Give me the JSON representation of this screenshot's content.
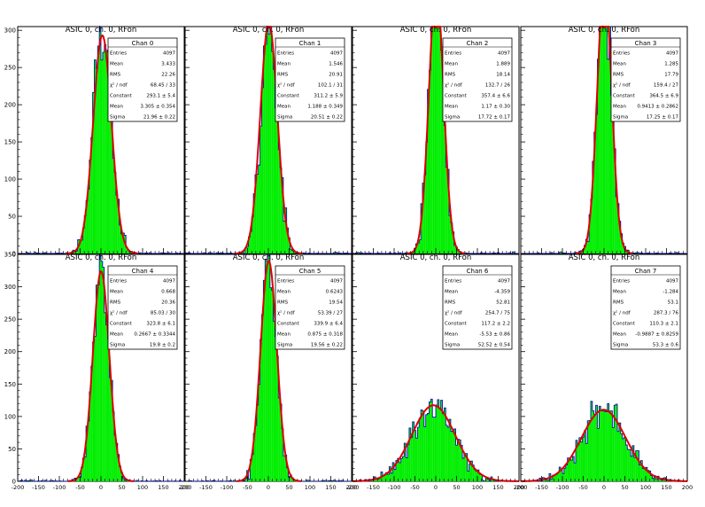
{
  "colors": {
    "fill": "#00ee00",
    "outline": "#0000aa",
    "fit": "#dd0000",
    "axis": "#000000",
    "background": "#ffffff"
  },
  "chart_data": [
    {
      "type": "bar",
      "title": "ASIC 0, ch. 0, RFon",
      "xlim": [
        -200,
        200
      ],
      "ylim": [
        0,
        305
      ],
      "x_ticks": [
        "-200",
        "-150",
        "-100",
        "-50",
        "0",
        "50",
        "100",
        "150",
        "200"
      ],
      "y_ticks": [
        "0",
        "50",
        "100",
        "150",
        "200",
        "250",
        "300"
      ],
      "stats": {
        "name": "Chan 0",
        "rows": [
          [
            "Entries",
            "4097"
          ],
          [
            "Mean",
            "3.433"
          ],
          [
            "RMS",
            "22.26"
          ],
          [
            "χ² / ndf",
            "68.45 / 33"
          ],
          [
            "Constant",
            "293.1 ± 5.4"
          ],
          [
            "Mean",
            "3.305 ± 0.354"
          ],
          [
            "Sigma",
            "21.96 ± 0.22"
          ]
        ]
      },
      "fit": {
        "constant": 293.1,
        "mean": 3.305,
        "sigma": 21.96
      }
    },
    {
      "type": "bar",
      "title": "ASIC 0, ch. 0, RFon",
      "xlim": [
        -200,
        200
      ],
      "ylim": [
        0,
        305
      ],
      "x_ticks": [
        "-200",
        "-150",
        "-100",
        "-50",
        "0",
        "50",
        "100",
        "150",
        "200"
      ],
      "y_ticks": [
        "0",
        "50",
        "100",
        "150",
        "200",
        "250",
        "300"
      ],
      "stats": {
        "name": "Chan 1",
        "rows": [
          [
            "Entries",
            "4097"
          ],
          [
            "Mean",
            "1.546"
          ],
          [
            "RMS",
            "20.91"
          ],
          [
            "χ² / ndf",
            "102.1 / 31"
          ],
          [
            "Constant",
            "311.2 ± 5.9"
          ],
          [
            "Mean",
            "1.188 ± 0.349"
          ],
          [
            "Sigma",
            "20.51 ± 0.22"
          ]
        ]
      },
      "fit": {
        "constant": 311.2,
        "mean": 1.188,
        "sigma": 20.51
      }
    },
    {
      "type": "bar",
      "title": "ASIC 0, ch. 0, RFon",
      "xlim": [
        -200,
        200
      ],
      "ylim": [
        0,
        305
      ],
      "x_ticks": [
        "-200",
        "-150",
        "-100",
        "-50",
        "0",
        "50",
        "100",
        "150",
        "200"
      ],
      "y_ticks": [
        "0",
        "50",
        "100",
        "150",
        "200",
        "250",
        "300"
      ],
      "stats": {
        "name": "Chan 2",
        "rows": [
          [
            "Entries",
            "4097"
          ],
          [
            "Mean",
            "1.889"
          ],
          [
            "RMS",
            "18.14"
          ],
          [
            "χ² / ndf",
            "132.7 / 26"
          ],
          [
            "Constant",
            "357.4 ± 6.6"
          ],
          [
            "Mean",
            "1.17 ± 0.30"
          ],
          [
            "Sigma",
            "17.72 ± 0.17"
          ]
        ]
      },
      "fit": {
        "constant": 357.4,
        "mean": 1.17,
        "sigma": 17.72
      }
    },
    {
      "type": "bar",
      "title": "ASIC 0, ch. 0, RFon",
      "xlim": [
        -200,
        200
      ],
      "ylim": [
        0,
        305
      ],
      "x_ticks": [
        "-200",
        "-150",
        "-100",
        "-50",
        "0",
        "50",
        "100",
        "150",
        "200"
      ],
      "y_ticks": [
        "0",
        "50",
        "100",
        "150",
        "200",
        "250",
        "300"
      ],
      "stats": {
        "name": "Chan 3",
        "rows": [
          [
            "Entries",
            "4097"
          ],
          [
            "Mean",
            "1.285"
          ],
          [
            "RMS",
            "17.79"
          ],
          [
            "χ² / ndf",
            "159.4 / 27"
          ],
          [
            "Constant",
            "364.5 ± 6.9"
          ],
          [
            "Mean",
            "0.9413 ± 0.2862"
          ],
          [
            "Sigma",
            "17.25 ± 0.17"
          ]
        ]
      },
      "fit": {
        "constant": 364.5,
        "mean": 0.9413,
        "sigma": 17.25
      }
    },
    {
      "type": "bar",
      "title": "ASIC 0, ch. 0, RFon",
      "xlim": [
        -200,
        200
      ],
      "ylim": [
        0,
        350
      ],
      "x_ticks": [
        "-200",
        "-150",
        "-100",
        "-50",
        "0",
        "50",
        "100",
        "150",
        "200"
      ],
      "y_ticks": [
        "0",
        "50",
        "100",
        "150",
        "200",
        "250",
        "300",
        "350"
      ],
      "stats": {
        "name": "Chan 4",
        "rows": [
          [
            "Entries",
            "4097"
          ],
          [
            "Mean",
            "0.668"
          ],
          [
            "RMS",
            "20.36"
          ],
          [
            "χ² / ndf",
            "85.03 / 30"
          ],
          [
            "Constant",
            "323.8 ± 6.1"
          ],
          [
            "Mean",
            "0.2667 ± 0.3344"
          ],
          [
            "Sigma",
            "19.8 ± 0.2"
          ]
        ]
      },
      "fit": {
        "constant": 323.8,
        "mean": 0.2667,
        "sigma": 19.8
      }
    },
    {
      "type": "bar",
      "title": "ASIC 0, ch. 0, RFon",
      "xlim": [
        -200,
        200
      ],
      "ylim": [
        0,
        350
      ],
      "x_ticks": [
        "-200",
        "-150",
        "-100",
        "-50",
        "0",
        "50",
        "100",
        "150",
        "200"
      ],
      "y_ticks": [
        "0",
        "50",
        "100",
        "150",
        "200",
        "250",
        "300",
        "350"
      ],
      "stats": {
        "name": "Chan 5",
        "rows": [
          [
            "Entries",
            "4097"
          ],
          [
            "Mean",
            "0.6243"
          ],
          [
            "RMS",
            "19.54"
          ],
          [
            "χ² / ndf",
            "53.39 / 27"
          ],
          [
            "Constant",
            "339.9 ± 6.4"
          ],
          [
            "Mean",
            "0.875 ± 0.318"
          ],
          [
            "Sigma",
            "19.56 ± 0.22"
          ]
        ]
      },
      "fit": {
        "constant": 339.9,
        "mean": 0.875,
        "sigma": 19.56
      }
    },
    {
      "type": "bar",
      "title": "ASIC 0, ch. 0, RFon",
      "xlim": [
        -200,
        200
      ],
      "ylim": [
        0,
        350
      ],
      "x_ticks": [
        "-200",
        "-150",
        "-100",
        "-50",
        "0",
        "50",
        "100",
        "150",
        "200"
      ],
      "y_ticks": [
        "0",
        "50",
        "100",
        "150",
        "200",
        "250",
        "300",
        "350"
      ],
      "stats": {
        "name": "Chan 6",
        "rows": [
          [
            "Entries",
            "4097"
          ],
          [
            "Mean",
            "-4.359"
          ],
          [
            "RMS",
            "52.81"
          ],
          [
            "χ² / ndf",
            "254.7 / 75"
          ],
          [
            "Constant",
            "117.2 ± 2.2"
          ],
          [
            "Mean",
            "-5.53 ± 0.86"
          ],
          [
            "Sigma",
            "52.52 ± 0.54"
          ]
        ]
      },
      "fit": {
        "constant": 117.2,
        "mean": -5.53,
        "sigma": 52.52
      }
    },
    {
      "type": "bar",
      "title": "ASIC 0, ch. 0, RFon",
      "xlim": [
        -200,
        200
      ],
      "ylim": [
        0,
        350
      ],
      "x_ticks": [
        "-200",
        "-150",
        "-100",
        "-50",
        "0",
        "50",
        "100",
        "150",
        "200"
      ],
      "y_ticks": [
        "0",
        "50",
        "100",
        "150",
        "200",
        "250",
        "300",
        "350"
      ],
      "stats": {
        "name": "Chan 7",
        "rows": [
          [
            "Entries",
            "4097"
          ],
          [
            "Mean",
            "-1.284"
          ],
          [
            "RMS",
            "53.1"
          ],
          [
            "χ² / ndf",
            "287.3 / 76"
          ],
          [
            "Constant",
            "110.3 ± 2.1"
          ],
          [
            "Mean",
            "-0.9887 ± 0.8259"
          ],
          [
            "Sigma",
            "53.3 ± 0.6"
          ]
        ]
      },
      "fit": {
        "constant": 110.3,
        "mean": -0.9887,
        "sigma": 53.3
      }
    }
  ]
}
